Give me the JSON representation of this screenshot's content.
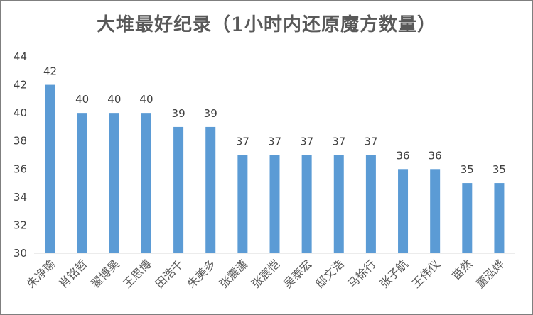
{
  "chart_data": {
    "type": "bar",
    "title": "大堆最好纪录（1小时内还原魔方数量）",
    "xlabel": "",
    "ylabel": "",
    "ylim": [
      30,
      44
    ],
    "yticks": [
      30,
      32,
      34,
      36,
      38,
      40,
      42,
      44
    ],
    "grid": false,
    "bar_color": "#5b9bd5",
    "categories": [
      "朱净瑜",
      "肖铭哲",
      "翟博昊",
      "王思博",
      "田浩千",
      "朱美多",
      "张震潇",
      "张宸恺",
      "吴泰宏",
      "邸文浩",
      "马徐行",
      "张子航",
      "王伟仪",
      "苗然",
      "董泓烨"
    ],
    "values": [
      42,
      40,
      40,
      40,
      39,
      39,
      37,
      37,
      37,
      37,
      37,
      36,
      36,
      35,
      35
    ]
  }
}
